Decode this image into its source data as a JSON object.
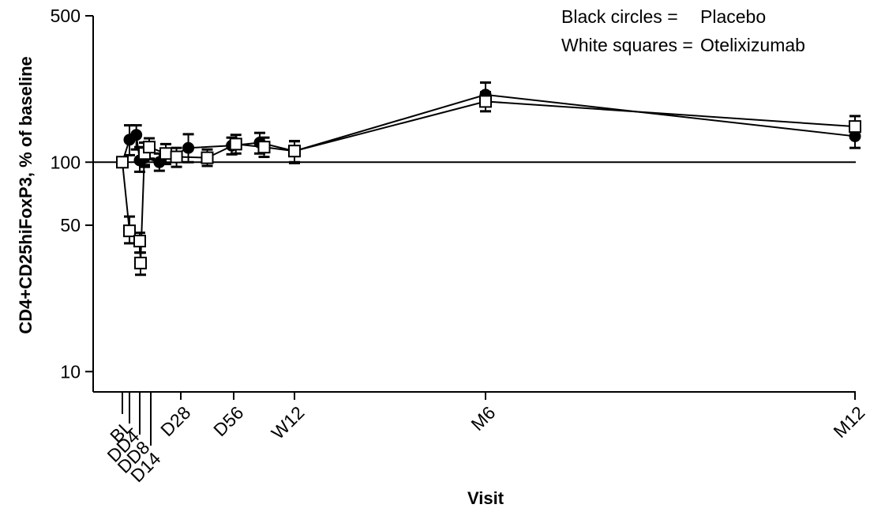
{
  "chart_data": {
    "type": "line",
    "xlabel": "Visit",
    "ylabel": "CD4+CD25hiFoxP3, % of baseline",
    "y_scale": "log",
    "ylim": [
      8,
      500
    ],
    "y_ticks": [
      10,
      50,
      100,
      500
    ],
    "reference_line_y": 100,
    "x_tick_labels": [
      "BL",
      "DD4",
      "DD8",
      "D14",
      "D28",
      "D56",
      "W12",
      "M6",
      "M12"
    ],
    "legend": [
      {
        "key": "Black circles =",
        "label": "Placebo"
      },
      {
        "key": "White squares =",
        "label": "Otelixizumab"
      }
    ],
    "series": [
      {
        "name": "Placebo",
        "marker": "filled-circle",
        "points": [
          {
            "x": 0,
            "y": 100,
            "err": [
              100,
              100
            ]
          },
          {
            "x": 4,
            "y": 128,
            "err": [
              108,
              150
            ]
          },
          {
            "x": 6,
            "y": 135,
            "err": [
              115,
              150
            ]
          },
          {
            "x": 7,
            "y": 102,
            "err": [
              90,
              118
            ]
          },
          {
            "x": 10,
            "y": 105,
            "err": [
              95,
              116
            ]
          },
          {
            "x": 18,
            "y": 100,
            "err": [
              91,
              110
            ]
          },
          {
            "x": 32,
            "y": 117,
            "err": [
              100,
              136
            ]
          },
          {
            "x": 55,
            "y": 120,
            "err": [
              109,
              131
            ]
          },
          {
            "x": 68,
            "y": 124,
            "err": [
              110,
              138
            ]
          },
          {
            "x": 84,
            "y": 113,
            "err": [
              100,
              126
            ]
          },
          {
            "x": 182,
            "y": 210,
            "err": [
              185,
              240
            ]
          },
          {
            "x": 365,
            "y": 133,
            "err": [
              117,
              152
            ]
          }
        ]
      },
      {
        "name": "Otelixizumab",
        "marker": "open-square",
        "points": [
          {
            "x": 0,
            "y": 100,
            "err": [
              100,
              100
            ]
          },
          {
            "x": 4,
            "y": 47,
            "err": [
              41,
              55
            ]
          },
          {
            "x": 7,
            "y": 42,
            "err": [
              37,
              46
            ]
          },
          {
            "x": 7.5,
            "y": 33,
            "err": [
              29,
              37
            ]
          },
          {
            "x": 10,
            "y": 110,
            "err": [
              97,
              124
            ]
          },
          {
            "x": 13,
            "y": 118,
            "err": [
              104,
              130
            ]
          },
          {
            "x": 21,
            "y": 110,
            "err": [
              98,
              122
            ]
          },
          {
            "x": 26,
            "y": 106,
            "err": [
              95,
              117
            ]
          },
          {
            "x": 42,
            "y": 105,
            "err": [
              96,
              115
            ]
          },
          {
            "x": 57,
            "y": 122,
            "err": [
              110,
              135
            ]
          },
          {
            "x": 70,
            "y": 118,
            "err": [
              106,
              131
            ]
          },
          {
            "x": 84,
            "y": 113,
            "err": [
              99,
              126
            ]
          },
          {
            "x": 182,
            "y": 195,
            "err": [
              175,
              216
            ]
          },
          {
            "x": 365,
            "y": 148,
            "err": [
              131,
              166
            ]
          }
        ]
      }
    ]
  }
}
